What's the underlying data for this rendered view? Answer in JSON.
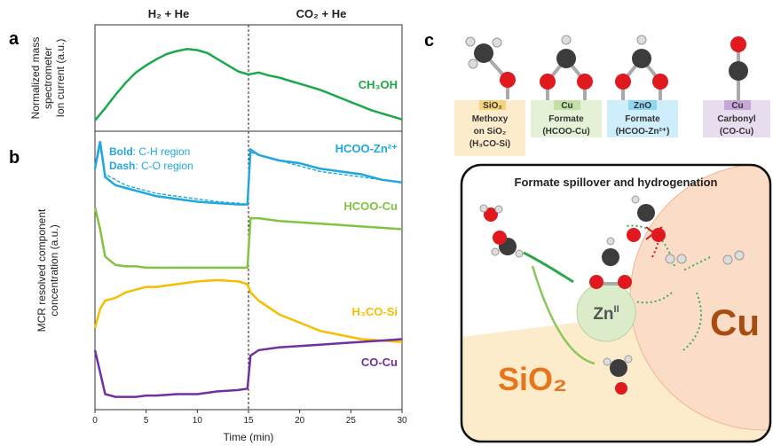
{
  "chart_data": [
    {
      "type": "line",
      "panel": "a",
      "phases": [
        "H₂ + He",
        "CO₂ + He"
      ],
      "divider_x": 15,
      "ylabel": [
        "Normalized mass",
        "spectrometer",
        "Ion current (a.u.)"
      ],
      "xlim": [
        0,
        30
      ],
      "ylim": [
        0,
        1
      ],
      "x": [
        0,
        1,
        2,
        3,
        4,
        5,
        6,
        7,
        8,
        9,
        10,
        11,
        12,
        13,
        14,
        15,
        16,
        17,
        18,
        19,
        20,
        21,
        22,
        23,
        24,
        25,
        26,
        27,
        28,
        29,
        30
      ],
      "series": [
        {
          "name": "CH₃OH",
          "color": "#1ca84a",
          "values": [
            0.08,
            0.2,
            0.33,
            0.45,
            0.55,
            0.62,
            0.68,
            0.73,
            0.76,
            0.78,
            0.77,
            0.74,
            0.68,
            0.62,
            0.56,
            0.53,
            0.55,
            0.52,
            0.5,
            0.47,
            0.44,
            0.41,
            0.38,
            0.34,
            0.3,
            0.26,
            0.22,
            0.18,
            0.15,
            0.12,
            0.09
          ]
        }
      ]
    },
    {
      "type": "line",
      "panel": "b",
      "divider_x": 15,
      "ylabel": [
        "MCR resolved component",
        "concentration (a.u.)"
      ],
      "xlabel": "Time (min)",
      "annotation": [
        [
          "Bold",
          ": C-H region"
        ],
        [
          "Dash",
          ": C-O region"
        ]
      ],
      "xlim": [
        0,
        30
      ],
      "xticks": [
        0,
        5,
        10,
        15,
        20,
        25,
        30
      ],
      "ylim": [
        0,
        1
      ],
      "x": [
        0,
        0.5,
        1,
        2,
        3,
        4,
        5,
        6,
        8,
        10,
        12,
        14,
        14.9,
        15.2,
        16,
        18,
        20,
        22,
        24,
        26,
        28,
        30
      ],
      "series": [
        {
          "name": "HCOO-Zn²⁺",
          "color": "#1fa8e0",
          "values": [
            0.87,
            0.97,
            0.84,
            0.81,
            0.8,
            0.79,
            0.78,
            0.77,
            0.76,
            0.75,
            0.745,
            0.74,
            0.74,
            0.94,
            0.92,
            0.9,
            0.89,
            0.87,
            0.86,
            0.85,
            0.83,
            0.82
          ],
          "dash_values": [
            0.87,
            0.95,
            0.85,
            0.83,
            0.81,
            0.8,
            0.79,
            0.78,
            0.77,
            0.76,
            0.75,
            0.745,
            0.74,
            0.93,
            0.92,
            0.9,
            0.88,
            0.86,
            0.85,
            0.84,
            0.83,
            0.82
          ]
        },
        {
          "name": "HCOO-Cu",
          "color": "#82c341",
          "values": [
            0.73,
            0.65,
            0.55,
            0.52,
            0.515,
            0.515,
            0.51,
            0.51,
            0.51,
            0.51,
            0.51,
            0.51,
            0.51,
            0.69,
            0.69,
            0.68,
            0.675,
            0.67,
            0.665,
            0.66,
            0.655,
            0.65
          ]
        },
        {
          "name": "H₃CO-Si",
          "color": "#f5be00",
          "values": [
            0.29,
            0.36,
            0.39,
            0.4,
            0.42,
            0.43,
            0.44,
            0.44,
            0.45,
            0.46,
            0.465,
            0.46,
            0.45,
            0.42,
            0.39,
            0.34,
            0.31,
            0.28,
            0.265,
            0.25,
            0.245,
            0.24
          ]
        },
        {
          "name": "CO-Cu",
          "color": "#7030a0",
          "values": [
            0.21,
            0.13,
            0.05,
            0.04,
            0.04,
            0.04,
            0.045,
            0.045,
            0.05,
            0.05,
            0.06,
            0.065,
            0.07,
            0.19,
            0.21,
            0.22,
            0.225,
            0.23,
            0.235,
            0.24,
            0.245,
            0.25
          ]
        }
      ]
    }
  ],
  "diagram": {
    "panel": "c",
    "species": [
      {
        "support": "SiO₂",
        "lines": [
          "Methoxy",
          "on SiO₂",
          "(H₃CO-Si)"
        ]
      },
      {
        "support": "Cu",
        "lines": [
          "Formate",
          "(HCOO-Cu)"
        ]
      },
      {
        "support": "ZnO",
        "lines": [
          "Formate",
          "(HCOO-Zn²⁺)"
        ]
      },
      {
        "support": "Cu",
        "lines": [
          "Carbonyl",
          "(CO-Cu)"
        ]
      }
    ],
    "title": "Formate spillover and hydrogenation",
    "zn": [
      "Zn",
      "II"
    ],
    "cu": "Cu",
    "sio2": "SiO₂"
  }
}
